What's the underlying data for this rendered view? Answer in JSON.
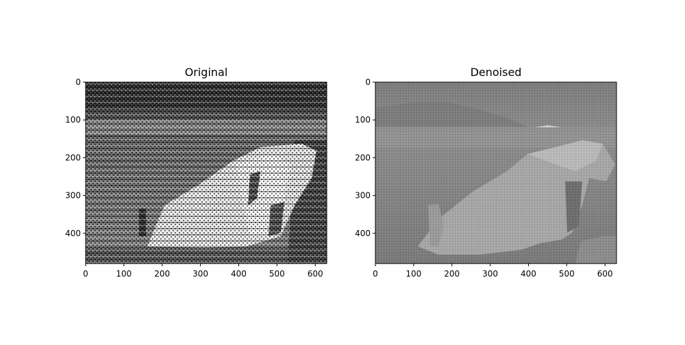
{
  "chart_data": [
    {
      "type": "heatmap",
      "title": "Original",
      "image_width": 630,
      "image_height": 480,
      "xlim": [
        0,
        630
      ],
      "ylim": [
        480,
        0
      ],
      "xticks": [
        0,
        100,
        200,
        300,
        400,
        500,
        600
      ],
      "yticks": [
        0,
        100,
        200,
        300,
        400
      ],
      "colormap": "gray",
      "appearance": "high-contrast noisy grayscale photo of a large rock on a shore, overlaid with a fine dot/stripe noise pattern"
    },
    {
      "type": "heatmap",
      "title": "Denoised",
      "image_width": 630,
      "image_height": 480,
      "xlim": [
        0,
        630
      ],
      "ylim": [
        480,
        0
      ],
      "xticks": [
        0,
        100,
        200,
        300,
        400,
        500,
        600
      ],
      "yticks": [
        0,
        100,
        200,
        300,
        400
      ],
      "colormap": "gray",
      "appearance": "smoother mid-gray photo of the same rock, cliffs and shoreline with reduced contrast"
    }
  ],
  "colors": {
    "axis": "#000000",
    "background": "#ffffff"
  }
}
